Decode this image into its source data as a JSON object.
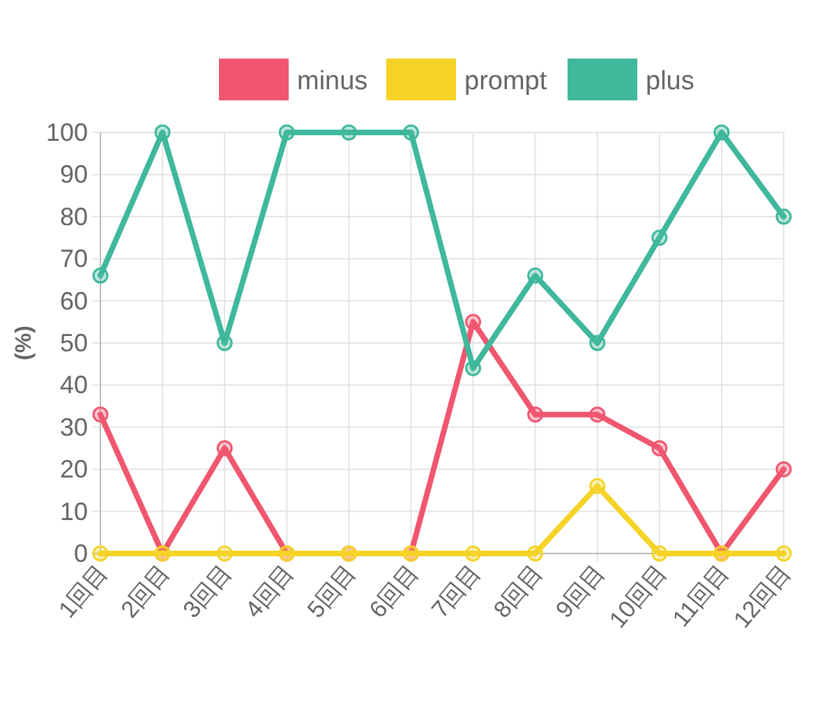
{
  "chart_data": {
    "type": "line",
    "ylabel": "(%)",
    "categories": [
      "1回目",
      "2回目",
      "3回目",
      "4回目",
      "5回目",
      "6回目",
      "7回目",
      "8回目",
      "9回目",
      "10回目",
      "11回目",
      "12回目"
    ],
    "series": [
      {
        "name": "minus",
        "color": "#f0566f",
        "values": [
          33,
          0,
          25,
          0,
          0,
          0,
          55,
          33,
          33,
          25,
          0,
          20
        ]
      },
      {
        "name": "prompt",
        "color": "#f5d327",
        "values": [
          0,
          0,
          0,
          0,
          0,
          0,
          0,
          0,
          16,
          0,
          0,
          0
        ]
      },
      {
        "name": "plus",
        "color": "#3fb89c",
        "values": [
          66,
          100,
          50,
          100,
          100,
          100,
          44,
          66,
          50,
          75,
          100,
          80
        ]
      }
    ],
    "ylim": [
      0,
      100
    ],
    "yticks": [
      0,
      10,
      20,
      30,
      40,
      50,
      60,
      70,
      80,
      90,
      100
    ],
    "grid": true,
    "legend": "top",
    "marker": "circle",
    "line_style": "solid"
  }
}
